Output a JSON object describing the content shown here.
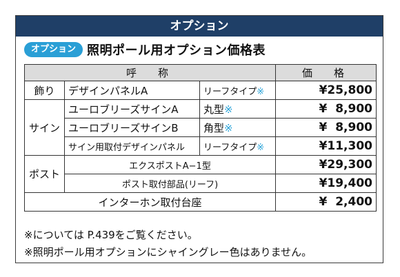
{
  "banner": "オプション",
  "heading": {
    "badge": "オプション",
    "title": "照明ポール用オプション価格表"
  },
  "table": {
    "headers": {
      "name": "呼　称",
      "price": "価　格"
    },
    "rows": {
      "deco": {
        "category": "飾り",
        "name": "デザインパネルA",
        "spec": "リーフタイプ",
        "mark": "※",
        "price": "¥25,800"
      },
      "signA": {
        "category": "サイン",
        "name": "ユーロブリーズサインA",
        "spec": "丸型",
        "mark": "※",
        "price": "¥  8,900"
      },
      "signB": {
        "name": "ユーロブリーズサインB",
        "spec": "角型",
        "mark": "※",
        "price": "¥  8,900"
      },
      "signPanel": {
        "name": "サイン用取付デザインパネル",
        "spec": "リーフタイプ",
        "mark": "※",
        "price": "¥11,300"
      },
      "post1": {
        "category": "ポスト",
        "name": "エクスポストA−1型",
        "price": "¥29,300"
      },
      "post2": {
        "name": "ポスト取付部品(リーフ)",
        "price": "¥19,400"
      },
      "intercom": {
        "name": "インターホン取付台座",
        "price": "¥  2,400"
      }
    }
  },
  "notes": [
    "※については P.439をご覧ください。",
    "※照明ポール用オプションにシャイングレー色はありません。"
  ],
  "colors": {
    "banner": "#1f3f67",
    "accent": "#2aa3d8",
    "header_bg": "#dcdcdc"
  }
}
